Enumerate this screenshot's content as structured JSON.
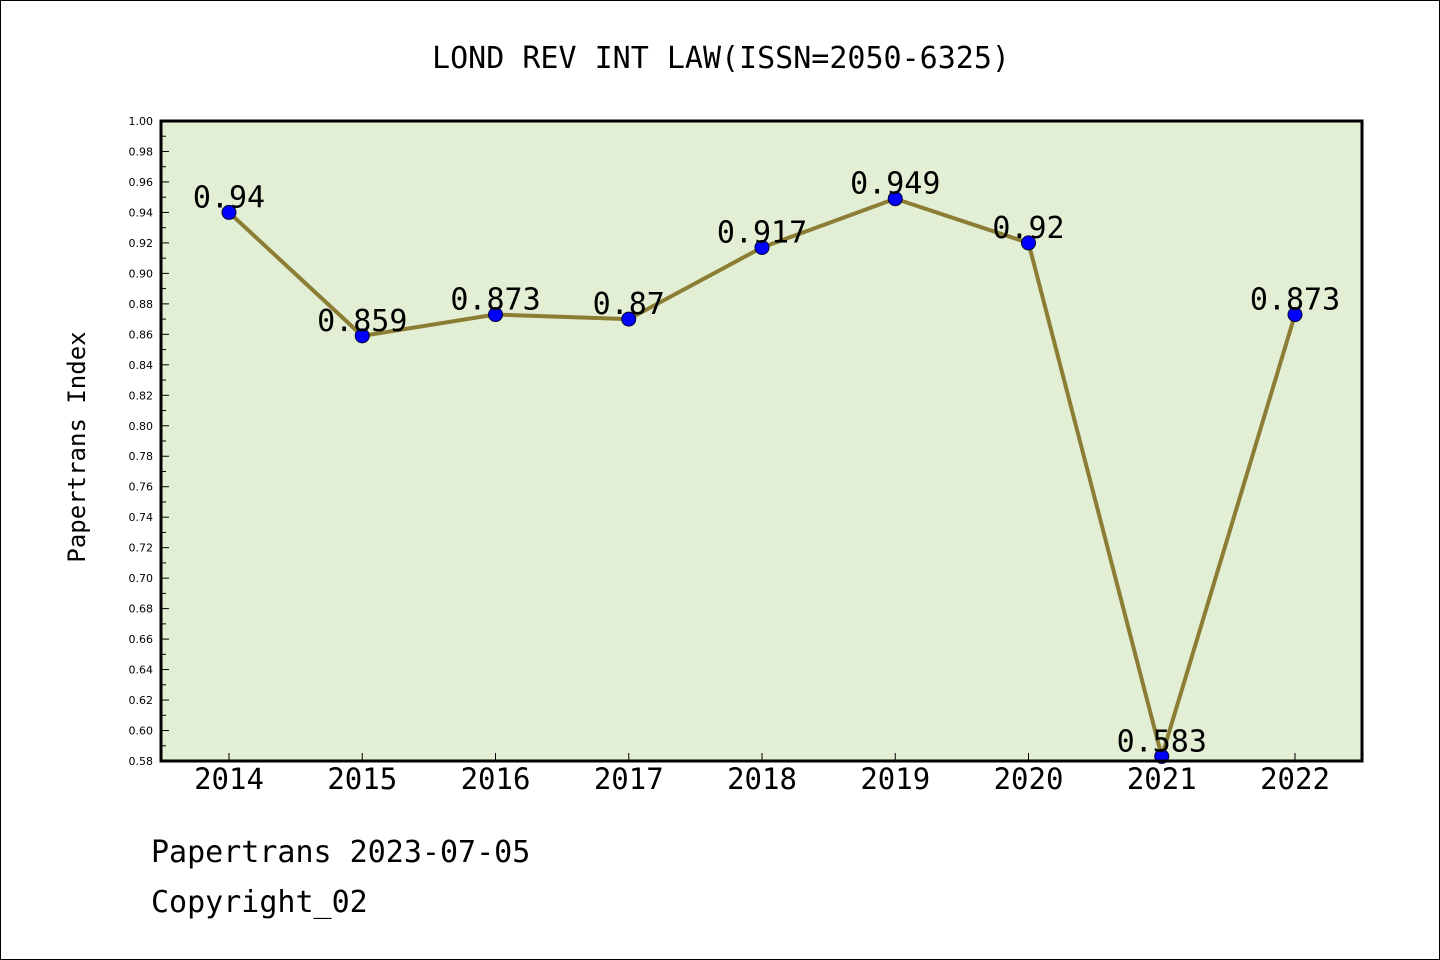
{
  "chart_data": {
    "type": "line",
    "title": "LOND REV INT LAW(ISSN=2050-6325)",
    "xlabel": "",
    "ylabel": "Papertrans Index",
    "categories": [
      "2014",
      "2015",
      "2016",
      "2017",
      "2018",
      "2019",
      "2020",
      "2021",
      "2022"
    ],
    "values": [
      0.94,
      0.859,
      0.873,
      0.87,
      0.917,
      0.949,
      0.92,
      0.583,
      0.873
    ],
    "data_labels": [
      "0.94",
      "0.859",
      "0.873",
      "0.87",
      "0.917",
      "0.949",
      "0.92",
      "0.583",
      "0.873"
    ],
    "ylim": [
      0.58,
      1.0
    ],
    "yticks": [
      "0.58",
      "0.60",
      "0.62",
      "0.64",
      "0.66",
      "0.68",
      "0.70",
      "0.72",
      "0.74",
      "0.76",
      "0.78",
      "0.80",
      "0.82",
      "0.84",
      "0.86",
      "0.88",
      "0.90",
      "0.92",
      "0.94",
      "0.96",
      "0.98",
      "1.00"
    ],
    "grid": false,
    "colors": {
      "plot_background": "#e2efd5",
      "line": "#8b7d33",
      "marker": "#0000ff",
      "axes": "#000000"
    }
  },
  "footer": {
    "line1": "Papertrans 2023-07-05",
    "line2": "Copyright_02"
  }
}
